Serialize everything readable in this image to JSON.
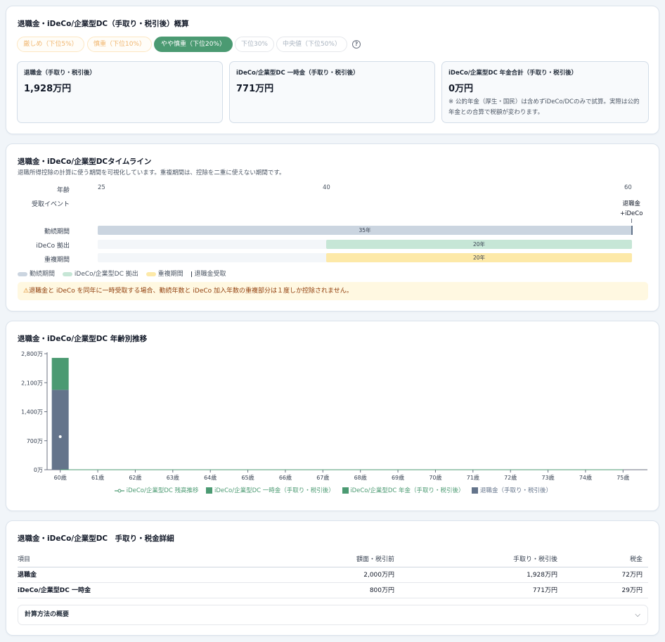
{
  "summary": {
    "title": "退職金・iDeCo/企業型DC（手取り・税引後）概算",
    "scenarios": [
      {
        "label": "厳しめ（下位5%）",
        "state": "warn"
      },
      {
        "label": "慎重（下位10%）",
        "state": "warn"
      },
      {
        "label": "やや慎重（下位20%）",
        "state": "active"
      },
      {
        "label": "下位30%",
        "state": "muted"
      },
      {
        "label": "中央値（下位50%）",
        "state": "muted"
      }
    ],
    "help_icon": "help-icon",
    "boxes": [
      {
        "label": "退職金（手取り・税引後）",
        "value": "1,928万円",
        "note": ""
      },
      {
        "label": "iDeCo/企業型DC 一時金（手取り・税引後）",
        "value": "771万円",
        "note": ""
      },
      {
        "label": "iDeCo/企業型DC 年金合計（手取り・税引後）",
        "value": "0万円",
        "note": "※ 公的年金（厚生・国民）は含めずiDeCo/DCのみで試算。実際は公的年金との合算で税額が変わります。"
      }
    ]
  },
  "timeline": {
    "title": "退職金・iDeCo/企業型DCタイムライン",
    "subtitle": "退職所得控除の計算に使う期間を可視化しています。重複期間は、控除を二重に使えない期間です。",
    "age_label": "年齢",
    "ages": [
      "25",
      "40",
      "60"
    ],
    "event_label": "受取イベント",
    "event_text": [
      "退職金",
      "+iDeCo"
    ],
    "rows": [
      {
        "label": "勤続期間",
        "text": "35年",
        "color": "#cbd5e0"
      },
      {
        "label": "iDeCo 拠出",
        "text": "20年",
        "color": "#c6e6d6"
      },
      {
        "label": "重複期間",
        "text": "20年",
        "color": "#fde9a8"
      }
    ],
    "legend": [
      "勤続期間",
      "iDeCo/企業型DC 拠出",
      "重複期間",
      "退職金受取"
    ],
    "warning_icon": "warning-icon",
    "warning": "退職金と iDeCo を同年に一時受取する場合、勤続年数と iDeCo 加入年数の重複部分は１度しか控除されません。"
  },
  "chart_section": {
    "title": "退職金・iDeCo/企業型DC 年齢別推移",
    "legend": [
      {
        "name": "iDeCo/企業型DC 残高推移",
        "color": "#4b9a72",
        "kind": "line"
      },
      {
        "name": "iDeCo/企業型DC 一時金（手取り・税引後）",
        "color": "#4b9a72",
        "kind": "box"
      },
      {
        "name": "iDeCo/企業型DC 年金（手取り・税引後）",
        "color": "#4b9a72",
        "kind": "box"
      },
      {
        "name": "退職金（手取り・税引後）",
        "color": "#64748b",
        "kind": "box"
      }
    ]
  },
  "chart_data": {
    "type": "bar",
    "categories": [
      "60歳",
      "61歳",
      "62歳",
      "63歳",
      "64歳",
      "65歳",
      "66歳",
      "67歳",
      "68歳",
      "69歳",
      "70歳",
      "71歳",
      "72歳",
      "73歳",
      "74歳",
      "75歳"
    ],
    "y_ticks": [
      "0万",
      "700万",
      "1,400万",
      "2,100万",
      "2,800万"
    ],
    "ylim": [
      0,
      2800
    ],
    "series": [
      {
        "name": "退職金（手取り・税引後）",
        "color": "#64748b",
        "values": [
          1928,
          0,
          0,
          0,
          0,
          0,
          0,
          0,
          0,
          0,
          0,
          0,
          0,
          0,
          0,
          0
        ]
      },
      {
        "name": "iDeCo/企業型DC 一時金（手取り・税引後）",
        "color": "#4b9a72",
        "values": [
          771,
          0,
          0,
          0,
          0,
          0,
          0,
          0,
          0,
          0,
          0,
          0,
          0,
          0,
          0,
          0
        ]
      },
      {
        "name": "iDeCo/企業型DC 年金（手取り・税引後）",
        "color": "#4b9a72",
        "values": [
          0,
          0,
          0,
          0,
          0,
          0,
          0,
          0,
          0,
          0,
          0,
          0,
          0,
          0,
          0,
          0
        ]
      },
      {
        "name": "iDeCo/企業型DC 残高推移",
        "color": "#4b9a72",
        "values": [
          0,
          0,
          0,
          0,
          0,
          0,
          0,
          0,
          0,
          0,
          0,
          0,
          0,
          0,
          0,
          0
        ]
      }
    ],
    "grid": false,
    "legend_position": "bottom"
  },
  "details": {
    "title": "退職金・iDeCo/企業型DC　手取り・税金詳細",
    "headers": [
      "項目",
      "額面・税引前",
      "手取り・税引後",
      "税金"
    ],
    "rows": [
      [
        "退職金",
        "2,000万円",
        "1,928万円",
        "72万円"
      ],
      [
        "iDeCo/企業型DC 一時金",
        "800万円",
        "771万円",
        "29万円"
      ]
    ],
    "accordion_label": "計算方法の概要",
    "accordion_icon": "chevron-down-icon"
  }
}
